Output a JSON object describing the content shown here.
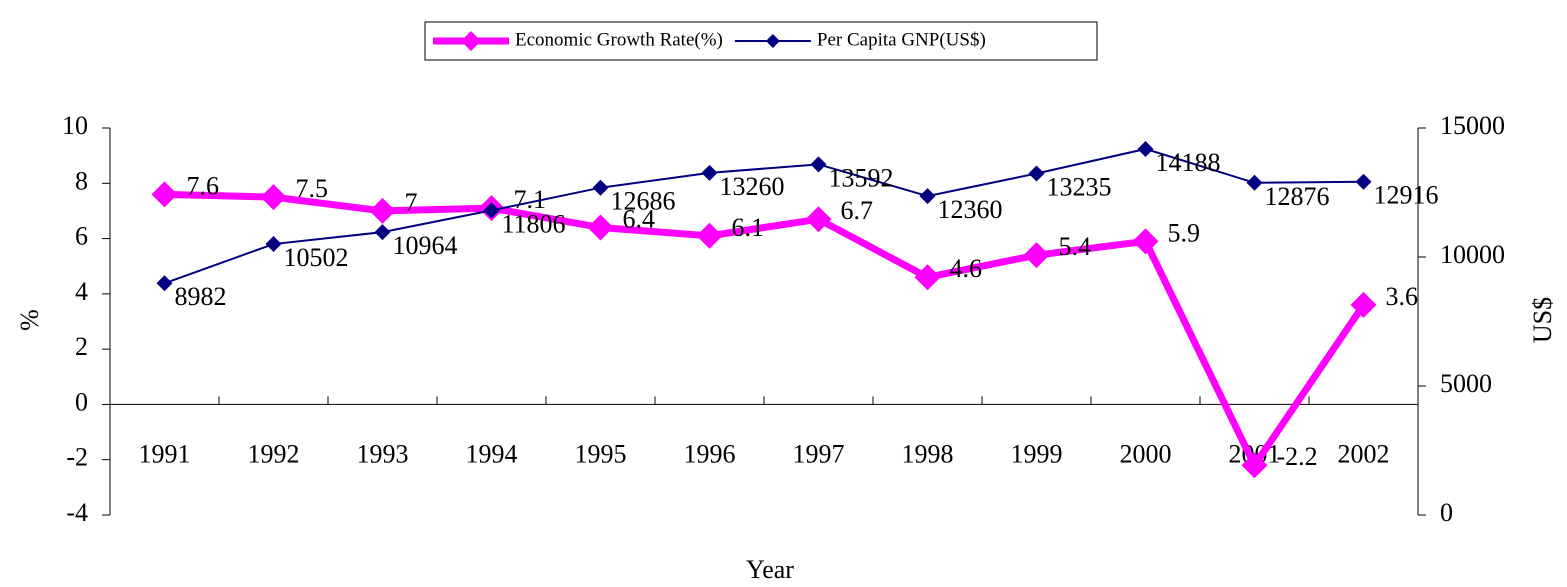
{
  "chart_data": {
    "type": "line",
    "categories": [
      "1991",
      "1992",
      "1993",
      "1994",
      "1995",
      "1996",
      "1997",
      "1998",
      "1999",
      "2000",
      "2001",
      "2002"
    ],
    "series": [
      {
        "name": "Economic Growth Rate(%)",
        "color": "#ff00ff",
        "values": [
          7.6,
          7.5,
          7,
          7.1,
          6.4,
          6.1,
          6.7,
          4.6,
          5.4,
          5.9,
          -2.2,
          3.6
        ]
      },
      {
        "name": "Per Capita GNP(US$)",
        "color": "#000080",
        "axis": "y2",
        "values": [
          8982,
          10502,
          10964,
          11806,
          12686,
          13260,
          13592,
          12360,
          13235,
          14188,
          12876,
          12916
        ]
      }
    ],
    "ylabel": "%",
    "y2label": "US$",
    "xlabel": "Year",
    "ylim": [
      -4,
      10
    ],
    "yticks": [
      -4,
      -2,
      0,
      2,
      4,
      6,
      8,
      10
    ],
    "y2lim": [
      0,
      15000
    ],
    "y2ticks": [
      0,
      5000,
      10000,
      15000
    ],
    "legend": "top",
    "grid": false
  }
}
